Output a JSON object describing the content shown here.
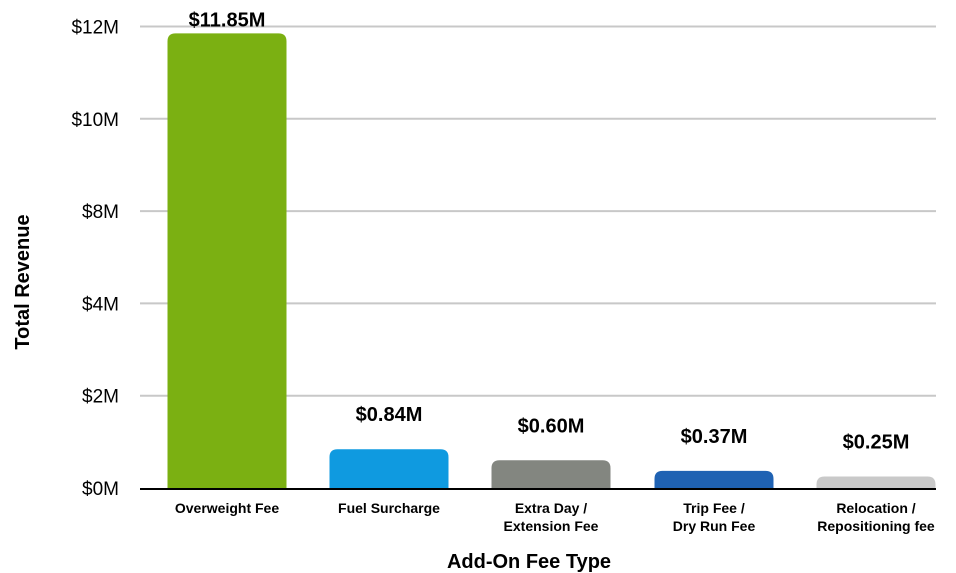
{
  "chart_data": {
    "type": "bar",
    "title": "",
    "xlabel": "Add-On Fee Type",
    "ylabel": "Total Revenue",
    "y_ticks": [
      {
        "label": "$0M",
        "pos": 0
      },
      {
        "label": "$2M",
        "pos": 1
      },
      {
        "label": "$4M",
        "pos": 2
      },
      {
        "label": "$8M",
        "pos": 3
      },
      {
        "label": "$10M",
        "pos": 4
      },
      {
        "label": "$12M",
        "pos": 5
      }
    ],
    "grid": true,
    "legend": "none",
    "categories": [
      {
        "lines": [
          "Overweight Fee"
        ]
      },
      {
        "lines": [
          "Fuel Surcharge"
        ]
      },
      {
        "lines": [
          "Extra Day /",
          "Extension Fee"
        ]
      },
      {
        "lines": [
          "Trip Fee /",
          "Dry Run Fee"
        ]
      },
      {
        "lines": [
          "Relocation /",
          "Repositioning fee"
        ]
      }
    ],
    "values": [
      11.85,
      0.84,
      0.6,
      0.37,
      0.25
    ],
    "data_labels": [
      "$11.85M",
      "$0.84M",
      "$0.60M",
      "$0.37M",
      "$0.25M"
    ],
    "colors": [
      "#7bb012",
      "#0f9ae0",
      "#838680",
      "#1f62b3",
      "#c9c9c9"
    ],
    "gridline_color": "#c8c8c8",
    "axis_color": "#000000"
  }
}
